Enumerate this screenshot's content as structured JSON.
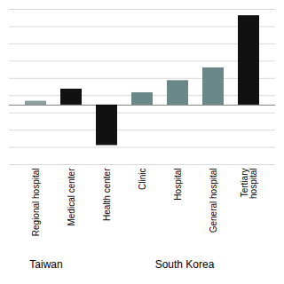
{
  "chart_data": {
    "type": "bar",
    "categories": [
      "Regional hospital",
      "Medical center",
      "Health center",
      "Clinic",
      "Hospital",
      "General hospital",
      "Tertiary\nhospital"
    ],
    "values": [
      0.018,
      0.075,
      -0.19,
      0.058,
      0.115,
      0.175,
      0.42
    ],
    "colors": [
      "#8a9e9e",
      "#111111",
      "#111111",
      "#6b8888",
      "#6b8888",
      "#6b8888",
      "#111111"
    ],
    "ylim": [
      -0.28,
      0.45
    ],
    "yticks": [
      -0.28,
      -0.1988888889,
      -0.1177777778,
      -0.0366666667,
      0.0444444444,
      0.1255555556,
      0.2066666667,
      0.2877777778,
      0.3688888889,
      0.45
    ],
    "grid": true,
    "tick_labels": "x",
    "annotations": [
      "Taiwan",
      "South Korea"
    ]
  }
}
